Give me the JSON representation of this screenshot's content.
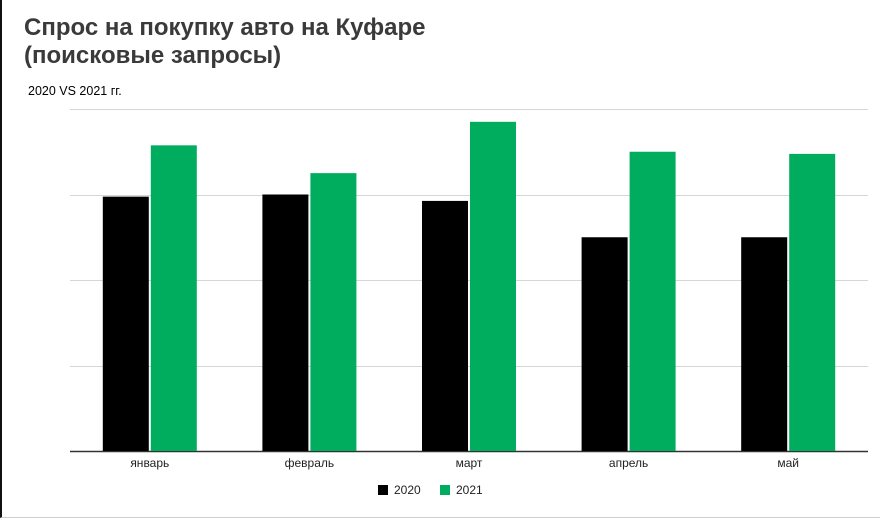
{
  "title_line1": "Спрос на покупку авто на Куфаре",
  "title_line2": "(поисковые запросы)",
  "subtitle": "2020 VS 2021 гг.",
  "chart_data": {
    "type": "bar",
    "title": "Спрос на покупку авто на Куфаре (поисковые запросы)",
    "subtitle": "2020 VS 2021 гг.",
    "categories": [
      "январь",
      "февраль",
      "март",
      "апрель",
      "май"
    ],
    "series": [
      {
        "name": "2020",
        "color": "#000000",
        "values": [
          59.5,
          60.0,
          58.5,
          50.0,
          50.0
        ]
      },
      {
        "name": "2021",
        "color": "#00ad5f",
        "values": [
          71.5,
          65.0,
          77.0,
          70.0,
          69.5
        ]
      }
    ],
    "ylim": [
      0,
      80
    ],
    "y_gridlines": [
      0,
      20,
      40,
      60,
      80
    ],
    "y_tick_labels_shown": false,
    "grid": true,
    "legend_position": "bottom-center",
    "xlabel": "",
    "ylabel": ""
  }
}
